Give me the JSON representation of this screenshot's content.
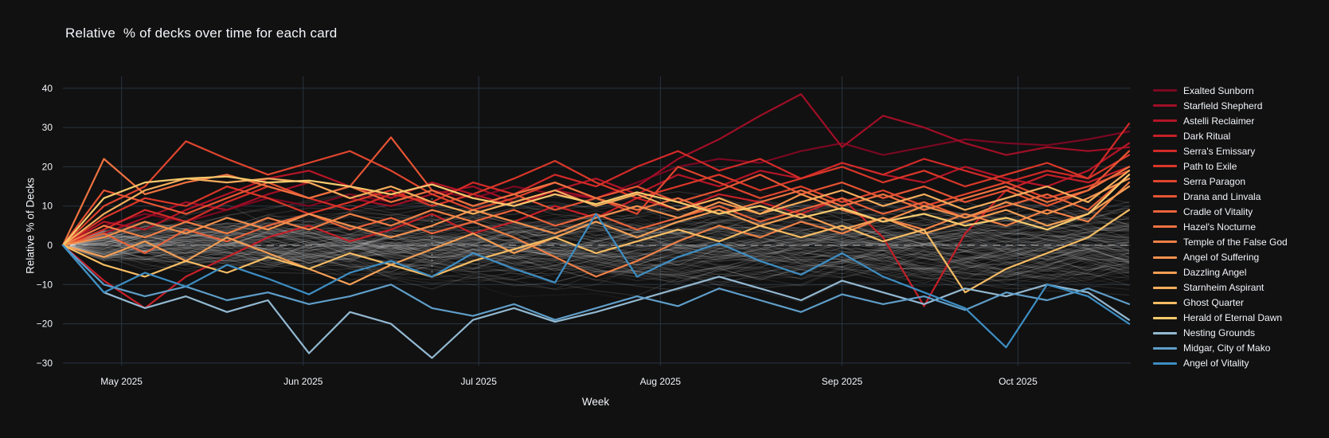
{
  "chart_data": {
    "type": "line",
    "title": "Relative  % of decks over time for each card",
    "xlabel": "Week",
    "ylabel": "Relative % of Decks",
    "x_unit": "weekly points",
    "n_points": 27,
    "ylim": [
      -33,
      44
    ],
    "grid": true,
    "legend_position": "right",
    "background_color": "#111111",
    "grid_color": "#283442",
    "zero_line": {
      "value": 0,
      "style": "dashed",
      "color": "#777777"
    },
    "crosshair": {
      "week": 9,
      "from": 12,
      "to": -9
    },
    "yticks": [
      {
        "label": "40",
        "value": 40
      },
      {
        "label": "30",
        "value": 30
      },
      {
        "label": "20",
        "value": 20
      },
      {
        "label": "10",
        "value": 10
      },
      {
        "label": "0",
        "value": 0
      },
      {
        "label": "−10",
        "value": -10
      },
      {
        "label": "−20",
        "value": -20
      },
      {
        "label": "−30",
        "value": -30
      }
    ],
    "xticks": [
      {
        "label": "May 2025",
        "week_pos": 1.43
      },
      {
        "label": "Jun 2025",
        "week_pos": 5.86
      },
      {
        "label": "Jul 2025",
        "week_pos": 10.14
      },
      {
        "label": "Aug 2025",
        "week_pos": 14.57
      },
      {
        "label": "Sep 2025",
        "week_pos": 19.0
      },
      {
        "label": "Oct 2025",
        "week_pos": 23.29
      }
    ],
    "background_series": {
      "description": "other cards, de-emphasized haze",
      "count": 128,
      "seed": 9,
      "color": "#ffffff",
      "opacity_range": [
        0.05,
        0.16
      ],
      "value_range": [
        -27,
        18
      ]
    },
    "series": [
      {
        "name": "Exalted Sunborn",
        "color": "#7a0822",
        "values": [
          0,
          5,
          8,
          6,
          9,
          12,
          10,
          13,
          11,
          14,
          12,
          15,
          13,
          12,
          16,
          20,
          22,
          21,
          24,
          26,
          23,
          25,
          27,
          26,
          25.5,
          27,
          29
        ]
      },
      {
        "name": "Starfield Shepherd",
        "color": "#a00e26",
        "values": [
          0,
          3,
          7,
          11,
          9,
          13,
          16,
          12,
          10,
          13,
          15,
          11,
          14,
          12,
          15,
          22,
          27,
          33,
          38.5,
          25,
          33,
          30,
          26,
          23,
          25,
          24,
          25
        ]
      },
      {
        "name": "Astelli Reclaimer",
        "color": "#b41527",
        "values": [
          0,
          6,
          4,
          9,
          13,
          17,
          19,
          15,
          12,
          16,
          13,
          10,
          14,
          17,
          13,
          18,
          15,
          19,
          17,
          21,
          18,
          16,
          20,
          17,
          15,
          19,
          26
        ]
      },
      {
        "name": "Dark Ritual",
        "color": "#c51f28",
        "values": [
          0,
          -9,
          -16,
          -8,
          -3,
          2,
          5,
          1,
          4,
          8,
          3,
          6,
          10,
          7,
          12,
          9,
          13,
          11,
          8,
          12,
          2,
          -15.5,
          3,
          14,
          18,
          16,
          20
        ]
      },
      {
        "name": "Serra's Emissary",
        "color": "#d22a28",
        "values": [
          0,
          4,
          9,
          6,
          11,
          15,
          12,
          9,
          13,
          11,
          16,
          13,
          18,
          15,
          20,
          24,
          19,
          22,
          17,
          21,
          18,
          22,
          19,
          16,
          19,
          17,
          31
        ]
      },
      {
        "name": "Path to Exile",
        "color": "#da3729",
        "values": [
          0,
          7,
          12,
          10,
          15,
          12,
          8,
          11,
          14,
          10,
          13,
          17,
          21.5,
          16,
          12,
          15,
          18,
          14,
          17,
          20,
          16,
          19,
          15,
          18,
          21,
          17,
          23
        ]
      },
      {
        "name": "Serra Paragon",
        "color": "#e0452e",
        "values": [
          0,
          10,
          15,
          26.5,
          22,
          18,
          21,
          24,
          19,
          13,
          9,
          12,
          16,
          12,
          8,
          20,
          16,
          12,
          15,
          11,
          14,
          10,
          13,
          16,
          12,
          15,
          19
        ]
      },
      {
        "name": "Drana and Linvala",
        "color": "#e65434",
        "values": [
          0,
          14,
          11,
          8,
          12,
          16,
          12,
          15,
          27.5,
          14,
          10,
          13,
          9,
          12,
          15,
          11,
          14,
          18,
          13,
          16,
          12,
          15,
          11,
          14,
          10,
          14,
          24
        ]
      },
      {
        "name": "Cradle of Vitality",
        "color": "#ea633a",
        "values": [
          0,
          3,
          -2,
          4,
          1,
          5,
          8,
          4,
          7,
          3,
          6,
          9,
          5,
          8,
          4,
          7,
          10,
          6,
          9,
          12,
          8,
          11,
          7,
          10,
          13,
          9,
          18
        ]
      },
      {
        "name": "Hazel's Nocturne",
        "color": "#ee7240",
        "values": [
          0,
          22,
          13,
          16,
          18,
          15,
          12,
          15,
          11,
          14,
          10,
          13,
          16,
          12,
          9,
          12,
          8,
          11,
          14,
          10,
          13,
          9,
          12,
          15,
          11,
          14,
          20
        ]
      },
      {
        "name": "Temple of the False God",
        "color": "#f08046",
        "values": [
          0,
          5,
          2,
          6,
          3,
          7,
          4,
          8,
          5,
          9,
          6,
          2,
          -3,
          -8,
          -4,
          1,
          5,
          2,
          6,
          3,
          7,
          4,
          8,
          5,
          9,
          6,
          16
        ]
      },
      {
        "name": "Angel of Suffering",
        "color": "#f2904d",
        "values": [
          0,
          2,
          6,
          3,
          7,
          4,
          8,
          5,
          2,
          5,
          9,
          6,
          3,
          7,
          10,
          7,
          11,
          8,
          13,
          9,
          6,
          10,
          7,
          11,
          8,
          12,
          17
        ]
      },
      {
        "name": "Dazzling Angel",
        "color": "#f49f55",
        "values": [
          0,
          -3,
          1,
          -4,
          2,
          -2,
          -6,
          -10,
          -5,
          -1,
          3,
          -2,
          2,
          6,
          2,
          6,
          9,
          5,
          8,
          4,
          7,
          3,
          6,
          9,
          5,
          8,
          15
        ]
      },
      {
        "name": "Starnheim Aspirant",
        "color": "#f6ae5d",
        "values": [
          0,
          8,
          14,
          17,
          16,
          17,
          16,
          12,
          15,
          11,
          8,
          11,
          14,
          10,
          13,
          9,
          12,
          8,
          11,
          14,
          10,
          13,
          9,
          12,
          15,
          11,
          19
        ]
      },
      {
        "name": "Ghost Quarter",
        "color": "#f7bd64",
        "values": [
          0,
          -5,
          -8,
          -4,
          -7,
          -3,
          -6,
          -2,
          -5,
          -8,
          -4,
          -1,
          2,
          -2,
          1,
          4,
          1,
          5,
          2,
          5,
          1,
          4,
          -12,
          -6,
          -2,
          2,
          9
        ]
      },
      {
        "name": "Herald of Eternal Dawn",
        "color": "#f8cb6d",
        "values": [
          0,
          12,
          16,
          17,
          17.5,
          16,
          16.5,
          15,
          13,
          15.5,
          12,
          10,
          13,
          10.5,
          13.5,
          11,
          8,
          10,
          7,
          9.5,
          6,
          8,
          5,
          7,
          4,
          8,
          18
        ]
      },
      {
        "name": "Nesting Grounds",
        "color": "#93b9d2",
        "values": [
          0,
          -12,
          -16,
          -13,
          -17,
          -14,
          -27.5,
          -17,
          -20,
          -28.7,
          -19,
          -16,
          -19.5,
          -17,
          -14,
          -11,
          -8,
          -11,
          -14,
          -9,
          -12,
          -15,
          -11,
          -13,
          -10,
          -12,
          -19
        ]
      },
      {
        "name": "Midgar, City of Mako",
        "color": "#5f9ec9",
        "values": [
          0,
          -10,
          -13,
          -10.5,
          -14,
          -12,
          -15,
          -13,
          -10,
          -16,
          -18,
          -15,
          -19,
          -16,
          -13,
          -15.5,
          -11,
          -14,
          -17,
          -12.5,
          -15,
          -13,
          -16.5,
          -12,
          -14,
          -11,
          -15
        ]
      },
      {
        "name": "Angel of Vitality",
        "color": "#3d8ec4",
        "values": [
          0,
          -12,
          -7,
          -10.5,
          -5,
          -8.5,
          -12.5,
          -7,
          -4,
          -8,
          -2,
          -6,
          -9.5,
          8,
          -8,
          -3,
          0.5,
          -4,
          -7.5,
          -2,
          -8,
          -12,
          -16,
          -26,
          -10,
          -13,
          -20
        ]
      }
    ]
  }
}
